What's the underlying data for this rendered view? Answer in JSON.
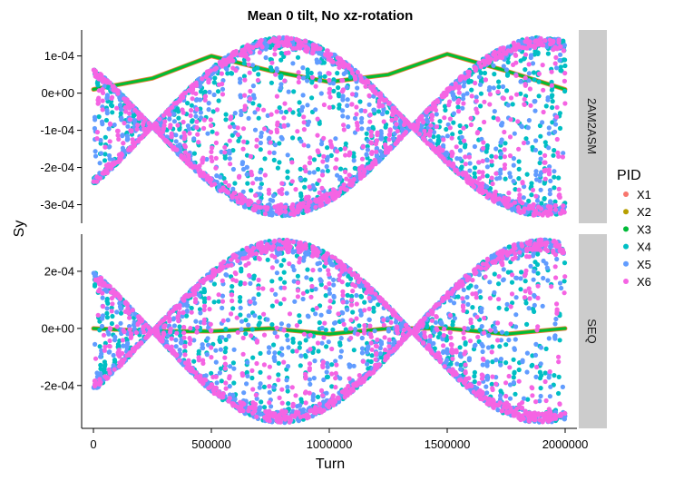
{
  "chart_data": {
    "type": "scatter",
    "title": "Mean 0 tilt, No xz-rotation",
    "xlabel": "Turn",
    "ylabel": "Sy",
    "xlim": [
      -50000,
      2050000
    ],
    "x_ticks": [
      {
        "value": 0,
        "label": "0"
      },
      {
        "value": 500000,
        "label": "500000"
      },
      {
        "value": 1000000,
        "label": "1000000"
      },
      {
        "value": 1500000,
        "label": "1500000"
      },
      {
        "value": 2000000,
        "label": "2000000"
      }
    ],
    "legend": {
      "title": "PID",
      "placement": "right",
      "entries": [
        {
          "name": "X1",
          "color": "#F8766D"
        },
        {
          "name": "X2",
          "color": "#B79F00"
        },
        {
          "name": "X3",
          "color": "#00BA38"
        },
        {
          "name": "X4",
          "color": "#00BFC4"
        },
        {
          "name": "X5",
          "color": "#619CFF"
        },
        {
          "name": "X6",
          "color": "#F564E3"
        }
      ]
    },
    "panels": [
      {
        "strip": "2AM2ASM",
        "ylim": [
          -0.00035,
          0.00017
        ],
        "y_ticks": [
          {
            "value": 0.0001,
            "label": "1e-04"
          },
          {
            "value": 0.0,
            "label": "0e+00"
          },
          {
            "value": -0.0001,
            "label": "-1e-04"
          },
          {
            "value": -0.0002,
            "label": "-2e-04"
          },
          {
            "value": -0.0003,
            "label": "-3e-04"
          }
        ],
        "center": -9e-05,
        "amplitude": 0.00024,
        "period": 1100000,
        "phase": 250000,
        "smooth_series": [
          {
            "name": "X1",
            "x": [
              0,
              250000,
              500000,
              750000,
              1000000,
              1250000,
              1500000,
              1750000,
              2000000
            ],
            "y": [
              1e-05,
              4e-05,
              0.0001,
              6e-05,
              3e-05,
              5e-05,
              0.000105,
              6e-05,
              1e-05
            ]
          },
          {
            "name": "X2",
            "x": [
              0,
              250000,
              500000,
              750000,
              1000000,
              1250000,
              1500000,
              1750000,
              2000000
            ],
            "y": [
              1e-05,
              4e-05,
              0.0001,
              6e-05,
              3e-05,
              5e-05,
              0.000105,
              6e-05,
              1e-05
            ]
          },
          {
            "name": "X3",
            "x": [
              0,
              250000,
              500000,
              750000,
              1000000,
              1250000,
              1500000,
              1750000,
              2000000
            ],
            "y": [
              1e-05,
              4e-05,
              0.0001,
              6e-05,
              3e-05,
              5e-05,
              0.000105,
              6e-05,
              1e-05
            ]
          }
        ],
        "scatter_series": [
          "X4",
          "X5",
          "X6"
        ]
      },
      {
        "strip": "SEQ",
        "ylim": [
          -0.00035,
          0.00033
        ],
        "y_ticks": [
          {
            "value": 0.0002,
            "label": "2e-04"
          },
          {
            "value": 0.0,
            "label": "0e+00"
          },
          {
            "value": -0.0002,
            "label": "-2e-04"
          }
        ],
        "center": -1e-05,
        "amplitude": 0.00032,
        "period": 1100000,
        "phase": 250000,
        "smooth_series": [
          {
            "name": "X1",
            "x": [
              0,
              250000,
              500000,
              750000,
              1000000,
              1250000,
              1500000,
              1750000,
              2000000
            ],
            "y": [
              0.0,
              -1e-05,
              -1e-05,
              0.0,
              -2e-05,
              0.0,
              0.0,
              -2e-05,
              0.0
            ]
          },
          {
            "name": "X2",
            "x": [
              0,
              250000,
              500000,
              750000,
              1000000,
              1250000,
              1500000,
              1750000,
              2000000
            ],
            "y": [
              0.0,
              -1e-05,
              -1e-05,
              0.0,
              -2e-05,
              0.0,
              0.0,
              -2e-05,
              0.0
            ]
          },
          {
            "name": "X3",
            "x": [
              0,
              250000,
              500000,
              750000,
              1000000,
              1250000,
              1500000,
              1750000,
              2000000
            ],
            "y": [
              0.0,
              -1e-05,
              -1e-05,
              0.0,
              -2e-05,
              0.0,
              0.0,
              -2e-05,
              0.0
            ]
          }
        ],
        "scatter_series": [
          "X4",
          "X5",
          "X6"
        ]
      }
    ]
  }
}
